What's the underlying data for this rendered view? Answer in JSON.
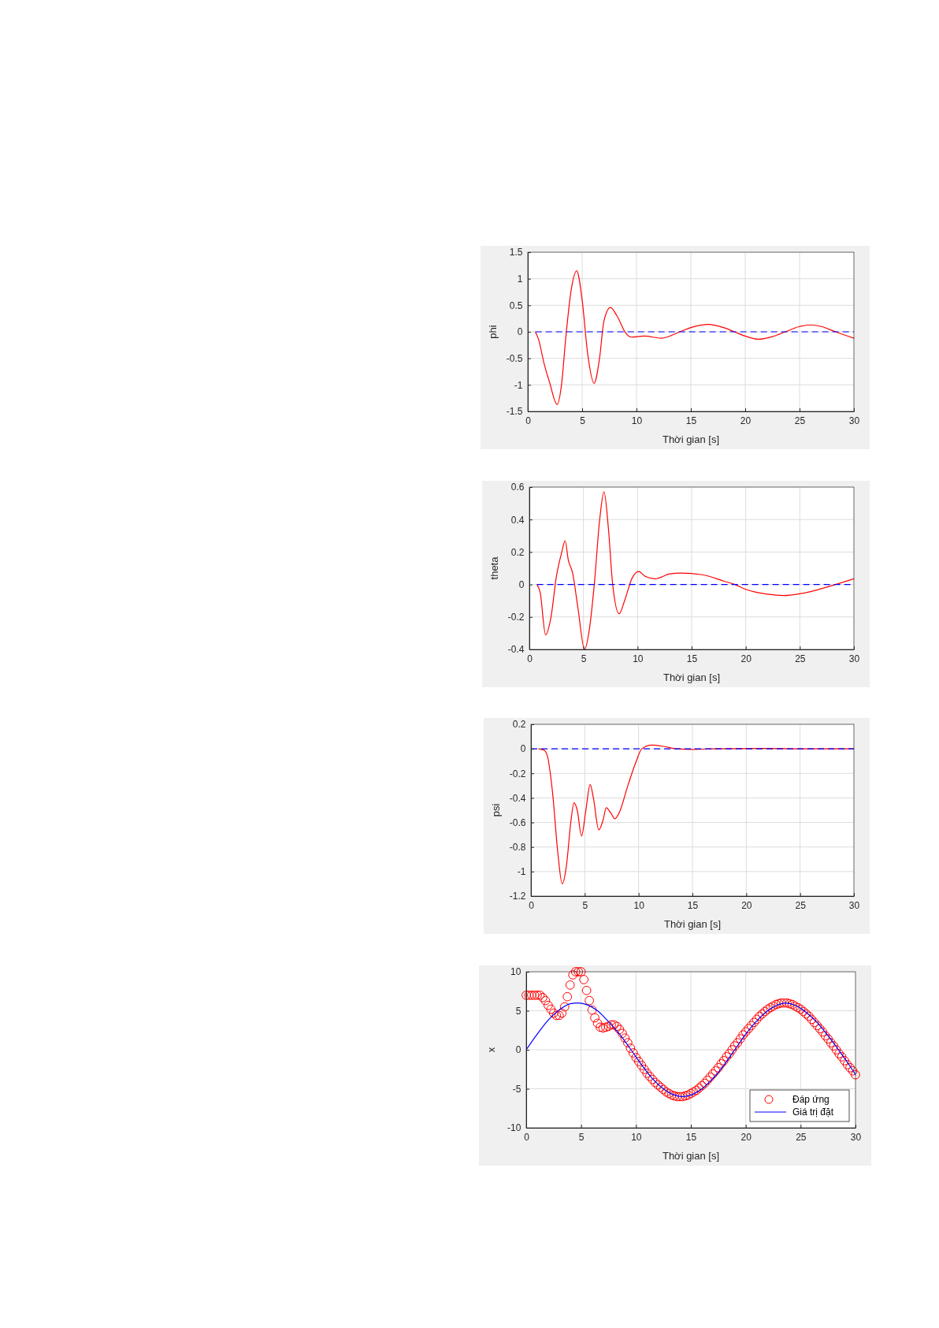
{
  "chart_data": [
    {
      "type": "line",
      "xlabel": "Thời gian [s]",
      "ylabel": "phi",
      "xlim": [
        0,
        30
      ],
      "xticks": [
        0,
        5,
        10,
        15,
        20,
        25,
        30
      ],
      "ylim": [
        -1.5,
        1.5
      ],
      "yticks": [
        -1.5,
        -1,
        -0.5,
        0,
        0.5,
        1,
        1.5
      ],
      "grid": true,
      "legend": false,
      "series": [
        {
          "color": "#ff0000",
          "x": [
            0.7,
            1,
            1.5,
            2,
            2.7,
            3.1,
            3.5,
            4,
            4.5,
            5,
            5.5,
            6.1,
            6.6,
            7,
            7.6,
            8.2,
            9,
            9.5,
            10.7,
            12.3,
            14,
            15,
            16.6,
            18,
            19,
            20,
            21.2,
            22.5,
            23.7,
            25,
            26,
            27,
            28.3,
            30
          ],
          "values": [
            0,
            -0.15,
            -0.6,
            -0.95,
            -1.37,
            -1,
            -0.1,
            0.8,
            1.15,
            0.6,
            -0.4,
            -0.97,
            -0.5,
            0.2,
            0.46,
            0.3,
            -0.02,
            -0.1,
            -0.08,
            -0.12,
            0,
            0.08,
            0.14,
            0.08,
            0,
            -0.08,
            -0.14,
            -0.09,
            0,
            0.1,
            0.13,
            0.1,
            0,
            -0.12
          ]
        },
        {
          "color": "#0000ff",
          "line_style": "dashed",
          "x": [
            0.7,
            30
          ],
          "values": [
            0,
            0
          ]
        }
      ]
    },
    {
      "type": "line",
      "xlabel": "Thời gian [s]",
      "ylabel": "theta",
      "xlim": [
        0,
        30
      ],
      "xticks": [
        0,
        5,
        10,
        15,
        20,
        25,
        30
      ],
      "ylim": [
        -0.4,
        0.6
      ],
      "yticks": [
        -0.4,
        -0.2,
        0,
        0.2,
        0.4,
        0.6
      ],
      "grid": true,
      "legend": false,
      "series": [
        {
          "color": "#ff0000",
          "x": [
            0.7,
            1,
            1.5,
            2,
            2.5,
            3,
            3.3,
            3.6,
            4,
            4.5,
            5.1,
            5.6,
            6,
            6.5,
            6.9,
            7.3,
            7.7,
            8.3,
            8.8,
            9.5,
            10.1,
            10.7,
            11.6,
            13,
            14,
            16,
            18,
            19,
            20,
            22,
            23.5,
            25,
            26.5,
            28.3,
            30
          ],
          "values": [
            0,
            -0.05,
            -0.31,
            -0.2,
            0.05,
            0.2,
            0.27,
            0.15,
            0.07,
            -0.15,
            -0.4,
            -0.25,
            0,
            0.4,
            0.57,
            0.35,
            0,
            -0.18,
            -0.1,
            0.04,
            0.08,
            0.05,
            0.035,
            0.065,
            0.07,
            0.06,
            0.02,
            0,
            -0.03,
            -0.06,
            -0.068,
            -0.057,
            -0.035,
            0,
            0.035
          ]
        },
        {
          "color": "#0000ff",
          "line_style": "dashed",
          "x": [
            0.7,
            30
          ],
          "values": [
            0,
            0
          ]
        }
      ]
    },
    {
      "type": "line",
      "xlabel": "Thời gian [s]",
      "ylabel": "psi",
      "xlim": [
        0,
        30
      ],
      "xticks": [
        0,
        5,
        10,
        15,
        20,
        25,
        30
      ],
      "ylim": [
        -1.2,
        0.2
      ],
      "yticks": [
        -1.2,
        -1,
        -0.8,
        -0.6,
        -0.4,
        -0.2,
        0,
        0.2
      ],
      "grid": true,
      "legend": false,
      "series": [
        {
          "color": "#ff0000",
          "x": [
            0.7,
            1.2,
            1.5,
            2,
            2.5,
            2.9,
            3.3,
            3.7,
            4,
            4.3,
            4.7,
            5.1,
            5.5,
            5.8,
            6.3,
            6.7,
            7,
            7.4,
            7.8,
            8.2,
            9,
            9.7,
            10.3,
            11.2,
            12.3,
            13.5,
            15,
            17,
            22,
            25,
            30
          ],
          "values": [
            0,
            -0.01,
            -0.05,
            -0.35,
            -0.85,
            -1.1,
            -0.95,
            -0.6,
            -0.44,
            -0.5,
            -0.71,
            -0.5,
            -0.29,
            -0.4,
            -0.66,
            -0.58,
            -0.48,
            -0.52,
            -0.57,
            -0.52,
            -0.3,
            -0.12,
            0,
            0.03,
            0.02,
            0,
            -0.005,
            0,
            0.003,
            0,
            0
          ]
        },
        {
          "color": "#0000ff",
          "line_style": "dashed",
          "x": [
            0,
            30
          ],
          "values": [
            0,
            0
          ]
        }
      ]
    },
    {
      "type": "line",
      "xlabel": "Thời gian [s]",
      "ylabel": "x",
      "xlim": [
        0,
        30
      ],
      "xticks": [
        0,
        5,
        10,
        15,
        20,
        25,
        30
      ],
      "ylim": [
        -10,
        10
      ],
      "yticks": [
        -10,
        -5,
        0,
        5,
        10
      ],
      "grid": true,
      "legend": "bottom right",
      "series": [
        {
          "name": "Đáp ứng",
          "type": "scatter",
          "marker": "circle",
          "color": "#ff0000",
          "x": [
            0,
            0.25,
            0.5,
            0.75,
            1,
            1.25,
            1.5,
            1.75,
            2,
            2.25,
            2.5,
            2.75,
            3,
            3.25,
            3.5,
            3.75,
            4,
            4.25,
            4.5,
            4.75,
            5,
            5.25,
            5.5,
            5.75,
            6,
            6.25,
            6.5,
            6.75,
            7,
            7.25,
            7.5,
            7.75,
            8,
            8.25,
            8.5,
            8.75,
            9,
            9.25,
            9.5,
            9.75,
            10,
            10.25,
            10.5,
            10.75,
            11,
            11.25,
            11.5,
            11.75,
            12,
            12.25,
            12.5,
            12.75,
            13,
            13.25,
            13.5,
            13.75,
            14,
            14.25,
            14.5,
            14.75,
            15,
            15.25,
            15.5,
            15.75,
            16,
            16.25,
            16.5,
            16.75,
            17,
            17.25,
            17.5,
            17.75,
            18,
            18.25,
            18.5,
            18.75,
            19,
            19.25,
            19.5,
            19.75,
            20,
            20.25,
            20.5,
            20.75,
            21,
            21.25,
            21.5,
            21.75,
            22,
            22.25,
            22.5,
            22.75,
            23,
            23.25,
            23.5,
            23.75,
            24,
            24.25,
            24.5,
            24.75,
            25,
            25.25,
            25.5,
            25.75,
            26,
            26.25,
            26.5,
            26.75,
            27,
            27.25,
            27.5,
            27.75,
            28,
            28.25,
            28.5,
            28.75,
            29,
            29.25,
            29.5,
            29.75,
            30
          ],
          "values": [
            7,
            7,
            7,
            7,
            7,
            7,
            6.7,
            6.3,
            5.7,
            5.2,
            4.7,
            4.4,
            4.4,
            4.7,
            5.5,
            6.8,
            8.3,
            9.6,
            10,
            10,
            10,
            9,
            7.6,
            6.3,
            5.1,
            4.1,
            3.4,
            2.9,
            2.8,
            2.9,
            3,
            3.2,
            3.2,
            3,
            2.6,
            2.1,
            1.5,
            0.9,
            0.2,
            -0.4,
            -1,
            -1.5,
            -2,
            -2.5,
            -3,
            -3.4,
            -3.8,
            -4.2,
            -4.5,
            -4.8,
            -5.1,
            -5.4,
            -5.6,
            -5.8,
            -5.9,
            -6,
            -6,
            -6,
            -5.9,
            -5.8,
            -5.6,
            -5.4,
            -5.2,
            -4.9,
            -4.6,
            -4.3,
            -3.9,
            -3.5,
            -3.1,
            -2.7,
            -2.3,
            -1.8,
            -1.4,
            -0.9,
            -0.5,
            0,
            0.5,
            0.9,
            1.4,
            1.9,
            2.3,
            2.7,
            3.1,
            3.5,
            3.9,
            4.3,
            4.6,
            4.9,
            5.2,
            5.4,
            5.6,
            5.8,
            5.9,
            6,
            6,
            6,
            5.9,
            5.8,
            5.6,
            5.4,
            5.2,
            4.9,
            4.6,
            4.3,
            3.9,
            3.5,
            3.1,
            2.7,
            2.3,
            1.8,
            1.4,
            0.9,
            0.5,
            0,
            -0.5,
            -0.9,
            -1.4,
            -1.9,
            -2.3,
            -2.7,
            -3.2
          ]
        },
        {
          "name": "Giá trị đặt",
          "color": "#0000ff",
          "x": [
            0,
            1,
            2,
            3,
            4,
            4.7,
            5.5,
            6.5,
            7.5,
            8.5,
            9.5,
            10.5,
            11.5,
            12.5,
            13.5,
            14.2,
            15,
            16,
            17,
            18,
            19,
            20,
            21,
            22,
            23,
            23.6,
            24.5,
            25.5,
            26.5,
            27.5,
            28.5,
            29.5,
            30
          ],
          "values": [
            0,
            2,
            3.8,
            5.1,
            5.9,
            6,
            5.8,
            5,
            3.6,
            2,
            0.1,
            -1.9,
            -3.7,
            -5,
            -5.8,
            -6,
            -5.8,
            -5,
            -3.7,
            -2,
            0,
            2,
            3.7,
            5,
            5.8,
            6,
            5.7,
            4.8,
            3.5,
            1.8,
            -0.1,
            -2.1,
            -3.2
          ]
        }
      ]
    }
  ]
}
